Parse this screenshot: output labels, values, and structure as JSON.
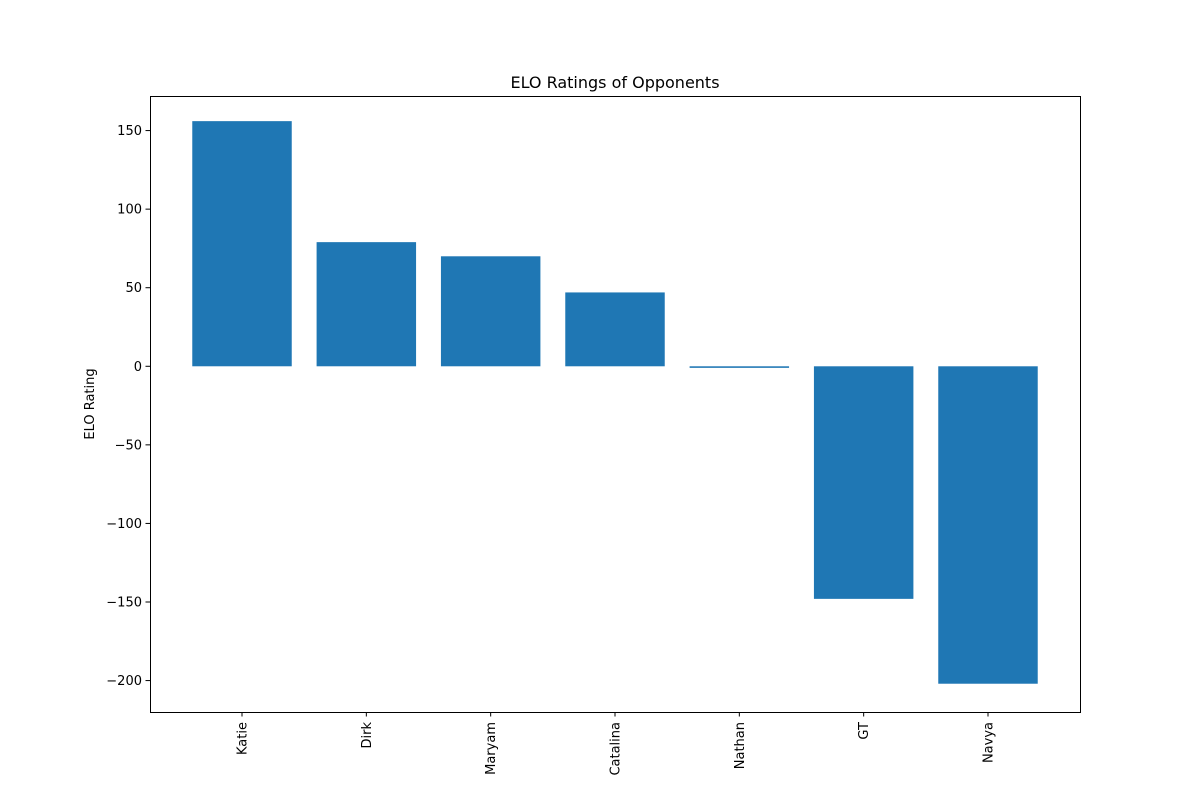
{
  "chart_data": {
    "type": "bar",
    "title": "ELO Ratings of Opponents",
    "xlabel": "",
    "ylabel": "ELO Rating",
    "categories": [
      "Katie",
      "Dirk",
      "Maryam",
      "Catalina",
      "Nathan",
      "GT",
      "Navya"
    ],
    "values": [
      156,
      79,
      70,
      47,
      -1,
      -148,
      -202
    ],
    "ylim": [
      -220,
      172
    ],
    "yticks": [
      150,
      100,
      50,
      0,
      -50,
      -100,
      -150,
      -200
    ],
    "ytick_labels": [
      "150",
      "100",
      "50",
      "0",
      "−50",
      "−100",
      "−150",
      "−200"
    ],
    "bar_color": "#1f77b4",
    "grid": false,
    "legend": "none"
  }
}
